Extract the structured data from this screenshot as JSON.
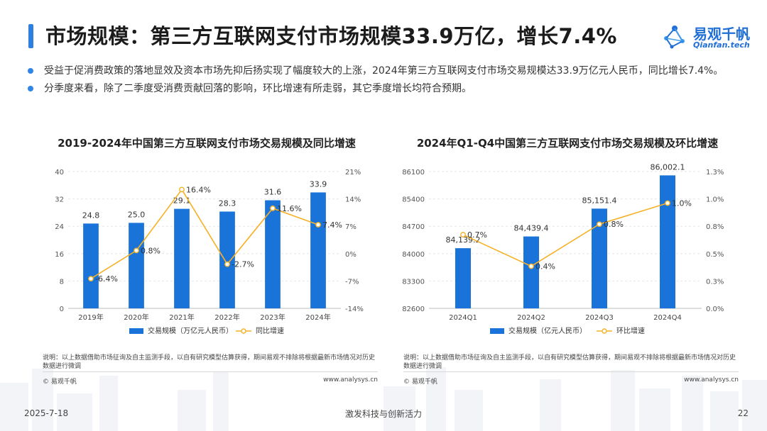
{
  "header": {
    "title": "市场规模：第三方互联网支付市场规模33.9万亿，增长7.4%",
    "logo_cn": "易观千帆",
    "logo_en": "Qianfan.tech"
  },
  "bullets": [
    "受益于促消费政策的落地显效及资本市场先抑后扬实现了幅度较大的上涨，2024年第三方互联网支付市场交易规模达33.9万亿元人民币，同比增长7.4%。",
    "分季度来看，除了二季度受消费贡献回落的影响，环比增速有所走弱，其它季度增长均符合预期。"
  ],
  "colors": {
    "bar": "#1a73d9",
    "line": "#f6b126",
    "accent": "#2f7fe0"
  },
  "chart_data": [
    {
      "type": "bar",
      "title": "2019-2024年中国第三方互联网支付市场交易规模及同比增速",
      "categories": [
        "2019年",
        "2020年",
        "2021年",
        "2022年",
        "2023年",
        "2024年"
      ],
      "series": [
        {
          "name": "交易规模（万亿元人民币）",
          "kind": "bar",
          "axis": "left",
          "values": [
            24.8,
            25.0,
            29.1,
            28.3,
            31.6,
            33.9
          ],
          "labels": [
            "24.8",
            "25.0",
            "29.1",
            "28.3",
            "31.6",
            "33.9"
          ]
        },
        {
          "name": "同比增速",
          "kind": "line",
          "axis": "right",
          "values": [
            -6.4,
            0.8,
            16.4,
            -2.7,
            11.6,
            7.4
          ],
          "labels": [
            "-6.4%",
            "0.8%",
            "16.4%",
            "-2.7%",
            "11.6%",
            "7.4%"
          ]
        }
      ],
      "ylim_left": [
        0,
        40
      ],
      "yticks_left": [
        "0",
        "8",
        "16",
        "24",
        "32",
        "40"
      ],
      "ylim_right": [
        -14,
        21
      ],
      "yticks_right": [
        "-14%",
        "-7%",
        "0%",
        "7%",
        "14%",
        "21%"
      ],
      "note": "说明：以上数据借助市场征询及自主监测手段，以自有研究模型估算获得，期间易观不排除将根据最新市场情况对历史数据进行微调",
      "copyright": "© 易观千帆",
      "website": "www.analysys.cn"
    },
    {
      "type": "bar",
      "title": "2024年Q1-Q4中国第三方互联网支付市场交易规模及环比增速",
      "categories": [
        "2024Q1",
        "2024Q2",
        "2024Q3",
        "2024Q4"
      ],
      "series": [
        {
          "name": "交易规模（亿元人民币）",
          "kind": "bar",
          "axis": "left",
          "values": [
            84139.2,
            84439.4,
            85151.4,
            86002.1
          ],
          "labels": [
            "84,139.2",
            "84,439.4",
            "85,151.4",
            "86,002.1"
          ]
        },
        {
          "name": "环比增速",
          "kind": "line",
          "axis": "right",
          "values": [
            0.7,
            0.4,
            0.8,
            1.0
          ],
          "labels": [
            "0.7%",
            "0.4%",
            "0.8%",
            "1.0%"
          ]
        }
      ],
      "ylim_left": [
        82600,
        86100
      ],
      "yticks_left": [
        "82600",
        "83300",
        "84000",
        "84700",
        "85400",
        "86100"
      ],
      "ylim_right": [
        0.0,
        1.3
      ],
      "yticks_right": [
        "0.0%",
        "0.3%",
        "0.5%",
        "0.8%",
        "1.0%",
        "1.3%"
      ],
      "note": "说明：以上数据借助市场征询及自主监测手段，以自有研究模型估算获得，期间易观不排除将根据最新市场情况对历史数据进行微调",
      "copyright": "© 易观千帆",
      "website": "www.analysys.cn"
    }
  ],
  "footer": {
    "date": "2025-7-18",
    "slogan": "激发科技与创新活力",
    "page": "22"
  }
}
